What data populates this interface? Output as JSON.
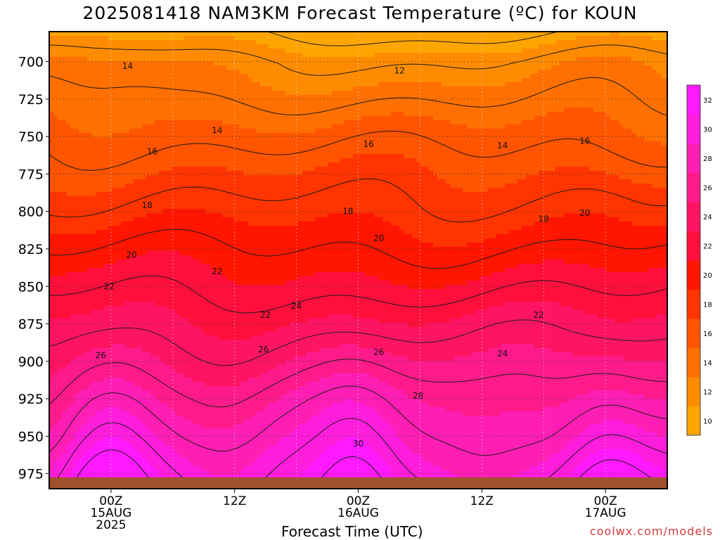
{
  "title": "2025081418 NAM3KM Forecast Temperature (ºC) for KOUN",
  "xlabel": "Forecast Time (UTC)",
  "credit": "coolwx.com/models",
  "chart_data": {
    "type": "heatmap",
    "title": "2025081418 NAM3KM Forecast Temperature (ºC) for KOUN",
    "xlabel": "Forecast Time (UTC)",
    "ylabel": "",
    "x_range_hours": [
      -6,
      54
    ],
    "y_range_hpa": [
      680,
      985
    ],
    "y_ticks": [
      700,
      725,
      750,
      775,
      800,
      825,
      850,
      875,
      900,
      925,
      950,
      975
    ],
    "x_ticks": [
      {
        "hour": 0,
        "lines": [
          "00Z",
          "15AUG",
          "2025"
        ]
      },
      {
        "hour": 12,
        "lines": [
          "12Z"
        ]
      },
      {
        "hour": 24,
        "lines": [
          "00Z",
          "16AUG"
        ]
      },
      {
        "hour": 36,
        "lines": [
          "12Z"
        ]
      },
      {
        "hour": 48,
        "lines": [
          "00Z",
          "17AUG"
        ]
      }
    ],
    "grid": true,
    "colorbar": {
      "labels": [
        "10",
        "12",
        "14",
        "16",
        "18",
        "20",
        "22",
        "24",
        "26",
        "28",
        "30",
        "32"
      ],
      "bins": [
        {
          "max": 11,
          "color": "#ffa500"
        },
        {
          "max": 13,
          "color": "#ff8c00"
        },
        {
          "max": 15,
          "color": "#ff7000"
        },
        {
          "max": 17,
          "color": "#ff5400"
        },
        {
          "max": 19,
          "color": "#ff3400"
        },
        {
          "max": 21,
          "color": "#ff1500"
        },
        {
          "max": 23,
          "color": "#ff0f3c"
        },
        {
          "max": 25,
          "color": "#ff1464"
        },
        {
          "max": 27,
          "color": "#ff1a8c"
        },
        {
          "max": 29,
          "color": "#ff1eb4"
        },
        {
          "max": 31,
          "color": "#ff1ddc"
        },
        {
          "max": 99,
          "color": "#ff19ff"
        }
      ]
    },
    "profile_base": [
      {
        "p": 680,
        "t": 10
      },
      {
        "p": 700,
        "t": 12.6
      },
      {
        "p": 725,
        "t": 14.1
      },
      {
        "p": 750,
        "t": 15.6
      },
      {
        "p": 775,
        "t": 17.0
      },
      {
        "p": 800,
        "t": 18.4
      },
      {
        "p": 825,
        "t": 20.0
      },
      {
        "p": 850,
        "t": 21.6
      },
      {
        "p": 875,
        "t": 23.3
      },
      {
        "p": 900,
        "t": 25.0
      },
      {
        "p": 925,
        "t": 26.8
      },
      {
        "p": 950,
        "t": 28.3
      },
      {
        "p": 975,
        "t": 30.0
      }
    ],
    "contour_labels": [
      {
        "text": "14",
        "h": 1.6,
        "p": 703
      },
      {
        "text": "12",
        "h": 28.0,
        "p": 706
      },
      {
        "text": "14",
        "h": 10.3,
        "p": 746
      },
      {
        "text": "16",
        "h": 4.0,
        "p": 760
      },
      {
        "text": "16",
        "h": 25.0,
        "p": 755
      },
      {
        "text": "14",
        "h": 38.0,
        "p": 756
      },
      {
        "text": "16",
        "h": 46.0,
        "p": 753
      },
      {
        "text": "18",
        "h": 3.5,
        "p": 796
      },
      {
        "text": "18",
        "h": 23.0,
        "p": 800
      },
      {
        "text": "18",
        "h": 42.0,
        "p": 805
      },
      {
        "text": "20",
        "h": 46.0,
        "p": 801
      },
      {
        "text": "20",
        "h": 2.0,
        "p": 829
      },
      {
        "text": "20",
        "h": 26.0,
        "p": 818
      },
      {
        "text": "22",
        "h": 15.0,
        "p": 869
      },
      {
        "text": "22",
        "h": -0.2,
        "p": 850
      },
      {
        "text": "22",
        "h": 10.3,
        "p": 840
      },
      {
        "text": "24",
        "h": 18.0,
        "p": 863
      },
      {
        "text": "22",
        "h": 41.5,
        "p": 869
      },
      {
        "text": "26",
        "h": -1.0,
        "p": 896
      },
      {
        "text": "26",
        "h": 14.8,
        "p": 892
      },
      {
        "text": "26",
        "h": 26.0,
        "p": 894
      },
      {
        "text": "24",
        "h": 38.0,
        "p": 895
      },
      {
        "text": "28",
        "h": 29.8,
        "p": 923
      },
      {
        "text": "30",
        "h": 24.0,
        "p": 955
      }
    ]
  }
}
